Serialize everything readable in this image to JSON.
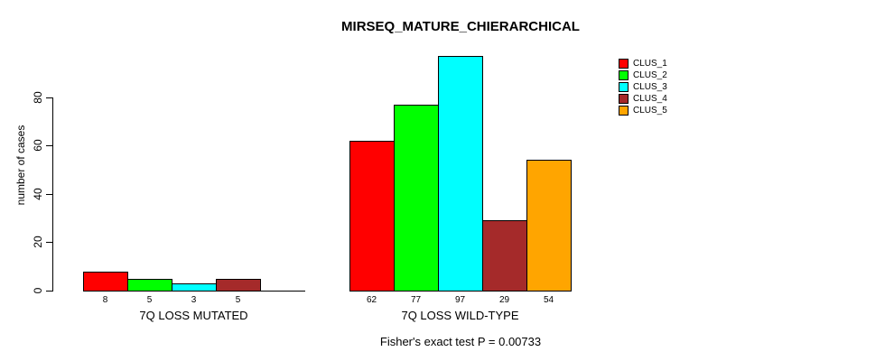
{
  "chart_data": {
    "type": "bar",
    "title": "MIRSEQ_MATURE_CHIERARCHICAL",
    "ylabel": "number of cases",
    "xlabel": "",
    "footnote": "Fisher's exact test P = 0.00733",
    "ylim": [
      0,
      100
    ],
    "yticks": [
      0,
      20,
      40,
      60,
      80
    ],
    "grid": false,
    "clusters": [
      "CLUS_1",
      "CLUS_2",
      "CLUS_3",
      "CLUS_4",
      "CLUS_5"
    ],
    "colors": [
      "#FF0000",
      "#00FF00",
      "#00FFFF",
      "#A52A2A",
      "#FFA500"
    ],
    "bar_border_color": "#000000",
    "groups": [
      {
        "label": "7Q LOSS MUTATED",
        "values": [
          8,
          5,
          3,
          5,
          0
        ],
        "bar_labels": [
          "8",
          "5",
          "3",
          "5",
          ""
        ]
      },
      {
        "label": "7Q LOSS WILD-TYPE",
        "values": [
          62,
          77,
          97,
          29,
          54
        ],
        "bar_labels": [
          "62",
          "77",
          "97",
          "29",
          "54"
        ]
      }
    ],
    "legend": {
      "position": "top-right",
      "entries": [
        {
          "label": "CLUS_1",
          "color": "#FF0000"
        },
        {
          "label": "CLUS_2",
          "color": "#00FF00"
        },
        {
          "label": "CLUS_3",
          "color": "#00FFFF"
        },
        {
          "label": "CLUS_4",
          "color": "#A52A2A"
        },
        {
          "label": "CLUS_5",
          "color": "#FFA500"
        }
      ]
    }
  }
}
